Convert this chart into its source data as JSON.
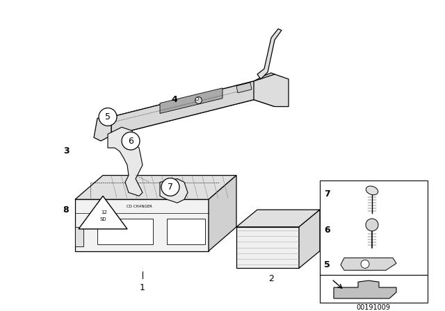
{
  "bg_color": "#ffffff",
  "part_number": "00191009",
  "line_color": "#000000",
  "gray_light": "#e8e8e8",
  "gray_mid": "#d0d0d0",
  "gray_dark": "#b0b0b0"
}
